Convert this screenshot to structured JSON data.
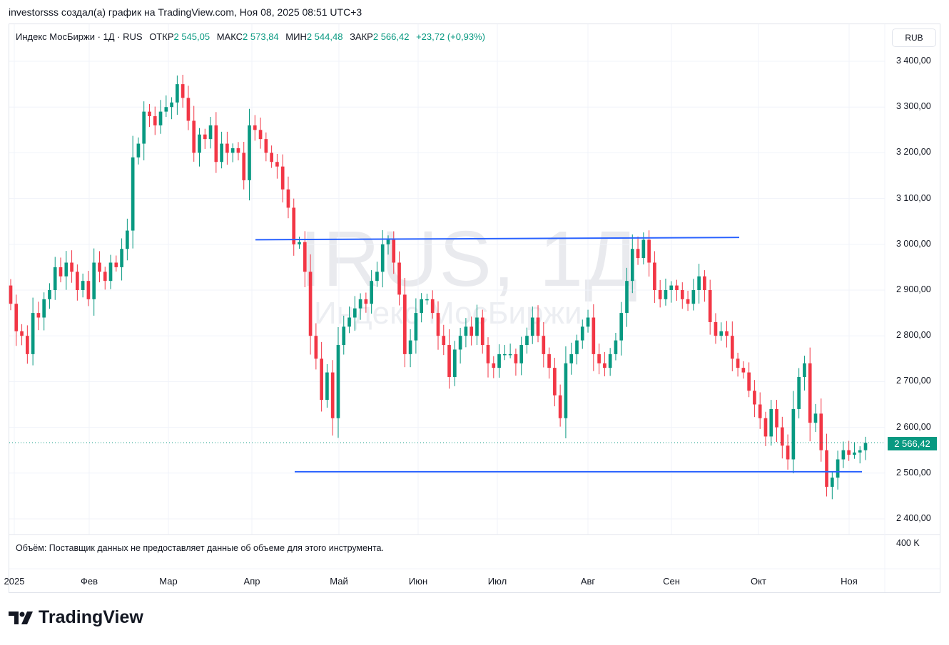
{
  "attribution": "investorsss создал(а) график на TradingView.com, Ноя 08, 2025 08:51 UTC+3",
  "legend": {
    "symbol": "Индекс МосБиржи · 1Д · RUS",
    "open_label": "ОТКР",
    "open": "2 545,05",
    "high_label": "МАКС",
    "high": "2 573,84",
    "low_label": "МИН",
    "low": "2 544,48",
    "close_label": "ЗАКР",
    "close": "2 566,42",
    "change": "+23,72 (+0,93%)"
  },
  "currency": "RUB",
  "watermark": {
    "ticker": "IRUS, 1Д",
    "name": "Индекс МосБиржи"
  },
  "volume_note": "Объём: Поставщик данных не предоставляет данные об объеме для этого инструмента.",
  "volume_axis_label": "400 K",
  "last_price_label": "2 566,42",
  "logo_text": "TradingView",
  "colors": {
    "up": "#089981",
    "down": "#f23645",
    "trendline": "#2962ff",
    "grid": "#f0f3fa"
  },
  "chart_data": {
    "type": "candlestick",
    "title": "Индекс МосБиржи · 1Д",
    "ylim": [
      2400,
      3400
    ],
    "y_ticks": [
      {
        "value": 3400,
        "label": "3 400,00"
      },
      {
        "value": 3300,
        "label": "3 300,00"
      },
      {
        "value": 3200,
        "label": "3 200,00"
      },
      {
        "value": 3100,
        "label": "3 100,00"
      },
      {
        "value": 3000,
        "label": "3 000,00"
      },
      {
        "value": 2900,
        "label": "2 900,00"
      },
      {
        "value": 2800,
        "label": "2 800,00"
      },
      {
        "value": 2700,
        "label": "2 700,00"
      },
      {
        "value": 2600,
        "label": "2 600,00"
      },
      {
        "value": 2500,
        "label": "2 500,00"
      },
      {
        "value": 2400,
        "label": "2 400,00"
      }
    ],
    "x_ticks": [
      "2025",
      "Фев",
      "Мар",
      "Апр",
      "Май",
      "Июн",
      "Июл",
      "Авг",
      "Сен",
      "Окт",
      "Ноя"
    ],
    "last_price": 2566.42,
    "trendlines": [
      {
        "name": "resistance",
        "from_price": 3010,
        "to_price": 3015
      },
      {
        "name": "support",
        "from_price": 2503,
        "to_price": 2503
      }
    ],
    "closes": [
      2870,
      2810,
      2800,
      2760,
      2850,
      2840,
      2880,
      2900,
      2950,
      2930,
      2960,
      2940,
      2900,
      2920,
      2880,
      2960,
      2940,
      2920,
      2960,
      2950,
      2990,
      3030,
      3190,
      3220,
      3290,
      3280,
      3260,
      3290,
      3300,
      3310,
      3350,
      3320,
      3270,
      3200,
      3240,
      3230,
      3260,
      3180,
      3220,
      3200,
      3210,
      3200,
      3140,
      3260,
      3250,
      3230,
      3200,
      3180,
      3170,
      3120,
      3080,
      3000,
      3005,
      2940,
      2800,
      2750,
      2660,
      2720,
      2620,
      2780,
      2820,
      2840,
      2860,
      2880,
      2870,
      2920,
      2940,
      3000,
      3010,
      2960,
      2890,
      2760,
      2790,
      2850,
      2880,
      2880,
      2850,
      2800,
      2780,
      2710,
      2770,
      2800,
      2820,
      2800,
      2840,
      2780,
      2740,
      2730,
      2760,
      2760,
      2760,
      2740,
      2780,
      2800,
      2840,
      2800,
      2760,
      2730,
      2670,
      2620,
      2740,
      2760,
      2790,
      2820,
      2840,
      2760,
      2740,
      2730,
      2760,
      2790,
      2850,
      2920,
      2990,
      2970,
      3010,
      2960,
      2900,
      2880,
      2900,
      2910,
      2900,
      2880,
      2870,
      2900,
      2930,
      2900,
      2830,
      2800,
      2810,
      2800,
      2750,
      2730,
      2720,
      2680,
      2650,
      2620,
      2580,
      2640,
      2600,
      2560,
      2530,
      2640,
      2710,
      2740,
      2610,
      2630,
      2550,
      2470,
      2490,
      2530,
      2550,
      2540,
      2545,
      2550,
      2566
    ]
  }
}
